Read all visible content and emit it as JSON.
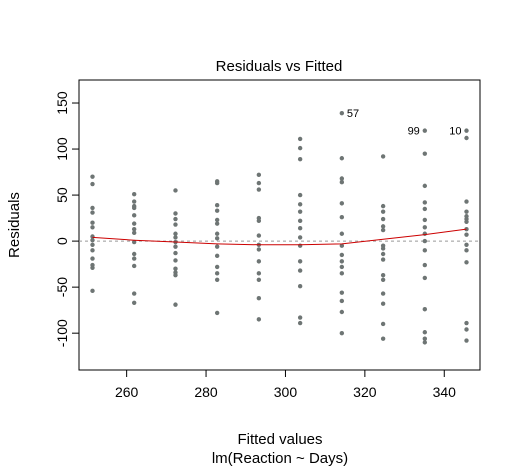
{
  "chart_data": {
    "type": "scatter",
    "title": "Residuals vs Fitted",
    "xlabel": "Fitted values",
    "xlabel_sub": "lm(Reaction ~ Days)",
    "ylabel": "Residuals",
    "xlim": [
      248,
      349
    ],
    "ylim": [
      -140,
      175
    ],
    "x_ticks": [
      260,
      280,
      300,
      320,
      340
    ],
    "y_ticks": [
      -100,
      -50,
      0,
      50,
      100,
      150
    ],
    "point_color": "#6e7574",
    "smooth_color": "#cc0000",
    "zero_line_color": "#999999",
    "groups": [
      {
        "x": 251.4,
        "residuals": [
          70,
          62,
          36,
          31,
          20,
          15,
          5,
          1,
          -4,
          -10,
          -19,
          -26,
          -29,
          -54
        ]
      },
      {
        "x": 261.9,
        "residuals": [
          51,
          43,
          38,
          36,
          28,
          19,
          13,
          9,
          -1,
          -14,
          -19,
          -27,
          -57,
          -67
        ]
      },
      {
        "x": 272.3,
        "residuals": [
          55,
          30,
          24,
          18,
          8,
          4,
          -1,
          -6,
          -13,
          -21,
          -30,
          -34,
          -37,
          -69
        ]
      },
      {
        "x": 282.8,
        "residuals": [
          65,
          63,
          39,
          33,
          23,
          19,
          8,
          3,
          -6,
          -16,
          -28,
          -35,
          -42,
          -78
        ]
      },
      {
        "x": 293.3,
        "residuals": [
          72,
          63,
          56,
          25,
          22,
          6,
          -4,
          -9,
          -22,
          -35,
          -42,
          -62,
          -85
        ]
      },
      {
        "x": 303.7,
        "residuals": [
          111,
          101,
          89,
          50,
          40,
          32,
          22,
          14,
          4,
          -5,
          -22,
          -32,
          -49,
          -83,
          -89
        ]
      },
      {
        "x": 314.2,
        "residuals": [
          139,
          90,
          68,
          64,
          41,
          26,
          8,
          -5,
          -15,
          -22,
          -28,
          -35,
          -56,
          -65,
          -77,
          -100
        ]
      },
      {
        "x": 324.6,
        "residuals": [
          92,
          38,
          32,
          24,
          16,
          12,
          -5,
          -8,
          -14,
          -20,
          -37,
          -42,
          -57,
          -68,
          -90,
          -106
        ]
      },
      {
        "x": 335.1,
        "residuals": [
          120,
          95,
          60,
          42,
          35,
          23,
          15,
          8,
          0,
          -10,
          -26,
          -40,
          -74,
          -99,
          -106,
          -110
        ]
      },
      {
        "x": 345.6,
        "residuals": [
          120,
          112,
          43,
          32,
          27,
          24,
          21,
          13,
          7,
          -4,
          -10,
          -23,
          -89,
          -96,
          -108
        ]
      }
    ],
    "smooth": {
      "x": [
        251.4,
        261.9,
        272.3,
        282.8,
        293.3,
        303.7,
        314.2,
        324.6,
        335.1,
        345.6
      ],
      "y": [
        4,
        1,
        -1,
        -3,
        -4,
        -4,
        -3,
        2,
        7,
        13
      ]
    },
    "point_labels": [
      {
        "text": "57",
        "x": 314.2,
        "y": 139,
        "side": "right"
      },
      {
        "text": "99",
        "x": 335.1,
        "y": 120,
        "side": "left"
      },
      {
        "text": "10",
        "x": 345.6,
        "y": 120,
        "side": "left"
      }
    ]
  }
}
